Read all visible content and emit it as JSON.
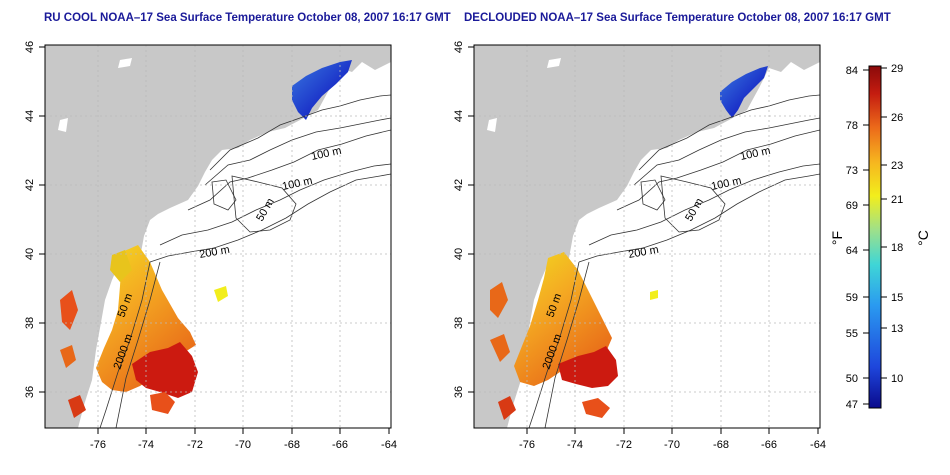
{
  "maps": [
    {
      "id": "left",
      "title": "RU COOL NOAA–17 Sea Surface Temperature October 08, 2007 16:17 GMT",
      "x_ticks": [
        "-76",
        "-74",
        "-72",
        "-70",
        "-68",
        "-66",
        "-64"
      ],
      "y_ticks": [
        "36",
        "38",
        "40",
        "42",
        "44",
        "46"
      ],
      "contour_labels": [
        "100 m",
        "100 m",
        "50 m",
        "200 m",
        "50 m",
        "2000 m"
      ]
    },
    {
      "id": "right",
      "title": "DECLOUDED NOAA–17 Sea Surface Temperature October 08, 2007 16:17 GMT",
      "x_ticks": [
        "-76",
        "-74",
        "-72",
        "-70",
        "-68",
        "-66",
        "-64"
      ],
      "y_ticks": [
        "36",
        "38",
        "40",
        "42",
        "44",
        "46"
      ],
      "contour_labels": [
        "100 m",
        "100 m",
        "50 m",
        "200 m",
        "50 m",
        "2000 m"
      ]
    }
  ],
  "colorbar": {
    "fahrenheit_label": "°F",
    "celsius_label": "°C",
    "fahrenheit_ticks": [
      "84",
      "78",
      "73",
      "69",
      "64",
      "59",
      "55",
      "50",
      "47"
    ],
    "celsius_ticks": [
      "29",
      "26",
      "23",
      "21",
      "18",
      "15",
      "13",
      "10"
    ],
    "colors": [
      "#0a0a8c",
      "#1e46dc",
      "#2a9af0",
      "#3fd6d6",
      "#9ee08a",
      "#f2ee1c",
      "#f6b51f",
      "#ec6a1a",
      "#c41c10",
      "#8a0a0a"
    ]
  }
}
